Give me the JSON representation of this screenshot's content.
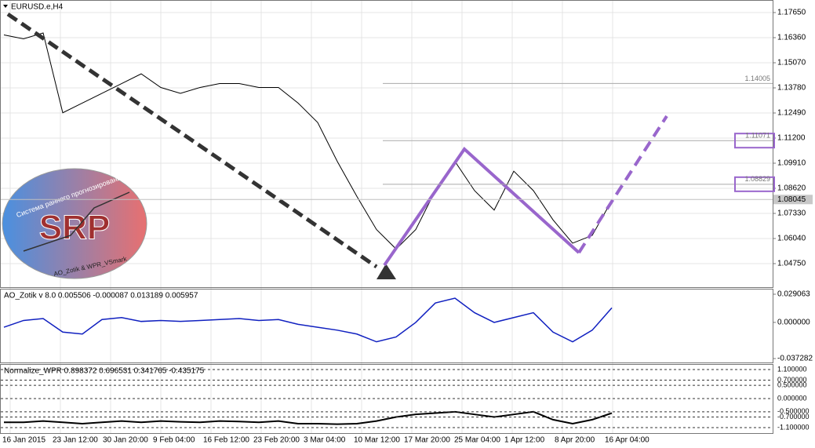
{
  "header": {
    "symbol": "EURUSD.e,H4"
  },
  "price_axis": {
    "ticks": [
      {
        "value": 1.1765,
        "label": "1.17650"
      },
      {
        "value": 1.1636,
        "label": "1.16360"
      },
      {
        "value": 1.1507,
        "label": "1.15070"
      },
      {
        "value": 1.1378,
        "label": "1.13780"
      },
      {
        "value": 1.1249,
        "label": "1.12490"
      },
      {
        "value": 1.112,
        "label": "1.11200"
      },
      {
        "value": 1.0991,
        "label": "1.09910"
      },
      {
        "value": 1.0862,
        "label": "1.08620"
      },
      {
        "value": 1.0733,
        "label": "1.07330"
      },
      {
        "value": 1.0604,
        "label": "1.06040"
      },
      {
        "value": 1.0475,
        "label": "1.04750"
      }
    ]
  },
  "levels": [
    1.14005,
    1.11071,
    1.08829
  ],
  "current_price": 1.08045,
  "price": [
    1.165,
    1.163,
    1.166,
    1.125,
    1.13,
    1.135,
    1.14,
    1.145,
    1.138,
    1.135,
    1.138,
    1.14,
    1.14,
    1.138,
    1.138,
    1.13,
    1.12,
    1.1,
    1.082,
    1.065,
    1.055,
    1.065,
    1.085,
    1.1,
    1.085,
    1.075,
    1.095,
    1.085,
    1.07,
    1.058,
    1.062,
    1.08
  ],
  "time_axis": [
    "16 Jan 2015",
    "23 Jan 12:00",
    "30 Jan 20:00",
    "9 Feb 04:00",
    "16 Feb 12:00",
    "23 Feb 20:00",
    "3 Mar 04:00",
    "10 Mar 12:00",
    "17 Mar 20:00",
    "25 Mar 04:00",
    "1 Apr 12:00",
    "8 Apr 20:00",
    "16 Apr 04:00"
  ],
  "logo": {
    "title": "SRP",
    "caption": "Система раннего прогнозирования",
    "subcaption": "AO_Zotik & WPR_VSmark"
  },
  "ao": {
    "label": "AO_Zotik v 8.0 0.005506 -0.000087 0.013189 0.005957",
    "ticks": [
      0.029063,
      {
        "value": 0,
        "label": "0.000000"
      },
      -0.037282
    ],
    "values": [
      -0.005,
      0.002,
      0.004,
      -0.01,
      -0.012,
      0.003,
      0.005,
      0.001,
      0.002,
      0.001,
      0.002,
      0.003,
      0.004,
      0.002,
      0.003,
      -0.002,
      -0.005,
      -0.008,
      -0.012,
      -0.02,
      -0.015,
      0.0,
      0.02,
      0.025,
      0.01,
      0.0,
      0.005,
      0.01,
      -0.01,
      -0.02,
      -0.008,
      0.015
    ]
  },
  "wpr": {
    "label": "Normalize_WPR 0.898372 0.696531 0.341765 -0.435175",
    "ticks": [
      {
        "value": 1.1,
        "label": "1.100000"
      },
      {
        "value": 0.7,
        "label": "0.700000"
      },
      {
        "value": 0.5,
        "label": "0.500000"
      },
      {
        "value": 0,
        "label": "0.000000"
      },
      {
        "value": -0.5,
        "label": "-0.500000"
      },
      {
        "value": -0.7,
        "label": "-0.700000"
      },
      {
        "value": -1.1,
        "label": "-1.100000"
      }
    ],
    "values": [
      -0.9,
      -0.9,
      -0.85,
      -0.9,
      -0.95,
      -0.9,
      -0.85,
      -0.9,
      -0.85,
      -0.88,
      -0.9,
      -0.85,
      -0.87,
      -0.9,
      -0.85,
      -0.95,
      -0.95,
      -0.97,
      -0.95,
      -0.85,
      -0.7,
      -0.6,
      -0.55,
      -0.5,
      -0.6,
      -0.7,
      -0.6,
      -0.5,
      -0.8,
      -0.95,
      -0.8,
      -0.55
    ]
  }
}
